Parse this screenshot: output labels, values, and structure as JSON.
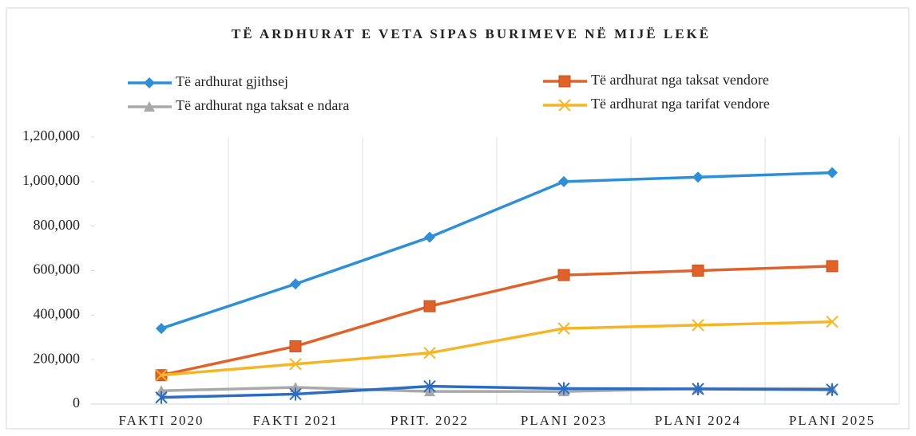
{
  "chart_data": {
    "type": "line",
    "title": "TË ARDHURAT E VETA SIPAS BURIMEVE NË MIJË LEKË",
    "categories": [
      "FAKTI 2020",
      "FAKTI 2021",
      "PRIT. 2022",
      "PLANI 2023",
      "PLANI 2024",
      "PLANI 2025"
    ],
    "series": [
      {
        "name": "Të ardhurat gjithsej",
        "color": "#2e8fd6",
        "marker": "diamond",
        "values": [
          340000,
          540000,
          750000,
          1000000,
          1020000,
          1040000
        ]
      },
      {
        "name": "Të ardhurat nga taksat vendore",
        "color": "#e0622a",
        "marker": "square",
        "values": [
          130000,
          260000,
          440000,
          580000,
          600000,
          620000
        ]
      },
      {
        "name": "Të ardhurat nga taksat e ndara",
        "color": "#a9a9a9",
        "marker": "triangle",
        "values": [
          60000,
          75000,
          57000,
          57000,
          70000,
          70000
        ]
      },
      {
        "name": "Të ardhurat nga tarifat vendore",
        "color": "#f5b625",
        "marker": "x",
        "values": [
          130000,
          180000,
          230000,
          340000,
          355000,
          370000
        ]
      },
      {
        "color": "#2b6cc4",
        "marker": "asterisk",
        "values": [
          30000,
          45000,
          80000,
          70000,
          68000,
          65000
        ]
      }
    ],
    "ylim": [
      0,
      1200000
    ],
    "yticks": [
      0,
      {
        "value": 200000,
        "label": "200,000"
      },
      {
        "value": 400000,
        "label": "400,000"
      },
      {
        "value": 600000,
        "label": "600,000"
      },
      {
        "value": 800000,
        "label": "800,000"
      },
      {
        "value": 1000000,
        "label": "1,000,000"
      },
      {
        "value": 1200000,
        "label": "1,200,000"
      }
    ],
    "grid": "vertical"
  }
}
